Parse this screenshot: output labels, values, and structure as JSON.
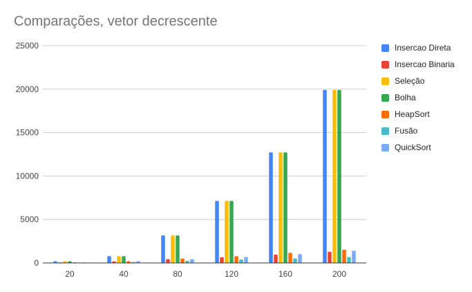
{
  "chart_data": {
    "type": "bar",
    "title": "Comparações, vetor decrescente",
    "categories": [
      "20",
      "40",
      "80",
      "120",
      "160",
      "200"
    ],
    "ylim": [
      0,
      25000
    ],
    "yticks": [
      "0",
      "5000",
      "10000",
      "15000",
      "20000",
      "25000"
    ],
    "grid": true,
    "legend_position": "right",
    "series": [
      {
        "name": "Insercao Direta",
        "color": "#4285f4",
        "values": [
          190,
          780,
          3160,
          7140,
          12720,
          19900
        ]
      },
      {
        "name": "Insercao Binaria",
        "color": "#ea4335",
        "values": [
          60,
          180,
          440,
          660,
          960,
          1280
        ]
      },
      {
        "name": "Seleção",
        "color": "#fbbc04",
        "values": [
          190,
          780,
          3160,
          7140,
          12720,
          19900
        ]
      },
      {
        "name": "Bolha",
        "color": "#34a853",
        "values": [
          190,
          780,
          3160,
          7140,
          12720,
          19900
        ]
      },
      {
        "name": "HeapSort",
        "color": "#ff6d01",
        "values": [
          70,
          200,
          500,
          780,
          1160,
          1520
        ]
      },
      {
        "name": "Fusão",
        "color": "#46bdc6",
        "values": [
          40,
          100,
          240,
          390,
          520,
          680
        ]
      },
      {
        "name": "QuickSort",
        "color": "#7baaf7",
        "values": [
          60,
          210,
          430,
          680,
          1020,
          1400
        ]
      }
    ]
  }
}
